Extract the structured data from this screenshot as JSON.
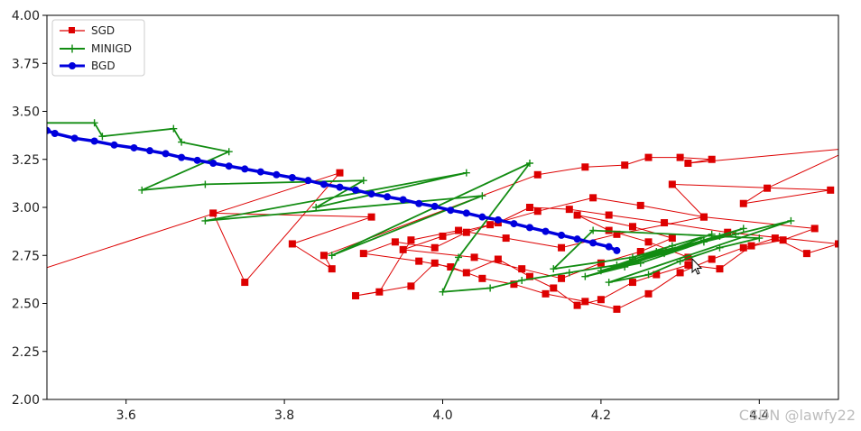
{
  "chart_data": {
    "type": "line",
    "title": "",
    "xlabel": "",
    "ylabel": "",
    "xlim": [
      3.5,
      4.5
    ],
    "ylim": [
      2.0,
      4.0
    ],
    "xticks": [
      3.6,
      3.8,
      4.0,
      4.2,
      4.4
    ],
    "yticks": [
      2.0,
      2.25,
      2.5,
      2.75,
      3.0,
      3.25,
      3.5,
      3.75,
      4.0
    ],
    "xtick_labels": [
      "3.6",
      "3.8",
      "4.0",
      "4.2",
      "4.4"
    ],
    "ytick_labels": [
      "2.00",
      "2.25",
      "2.50",
      "2.75",
      "3.00",
      "3.25",
      "3.50",
      "3.75",
      "4.00"
    ],
    "grid": false,
    "legend_position": "top-left",
    "series": [
      {
        "name": "SGD",
        "color": "#dd0000",
        "marker": "square",
        "x": [
          3.45,
          3.87,
          3.75,
          3.71,
          3.91,
          3.81,
          3.86,
          3.85,
          4.12,
          4.18,
          4.23,
          4.26,
          4.3,
          4.34,
          4.31,
          4.52,
          4.41,
          4.38,
          4.49,
          4.29,
          4.33,
          4.22,
          4.15,
          4.08,
          4.02,
          3.96,
          3.92,
          3.89,
          3.96,
          3.99,
          4.03,
          4.07,
          4.11,
          4.14,
          4.17,
          4.2,
          4.24,
          4.27,
          4.31,
          4.35,
          4.39,
          4.42,
          4.46,
          4.5,
          4.36,
          4.28,
          4.21,
          4.16,
          4.11,
          4.07,
          4.03,
          3.99,
          3.94,
          3.9,
          3.97,
          4.01,
          4.05,
          4.09,
          4.13,
          4.18,
          4.22,
          4.26,
          4.3,
          4.34,
          4.38,
          4.43,
          4.47,
          4.33,
          4.25,
          4.19,
          4.12,
          4.06,
          4.0,
          3.95,
          4.04,
          4.1,
          4.15,
          4.2,
          4.25,
          4.29,
          4.24,
          4.17,
          4.21,
          4.26,
          4.31
        ],
        "y": [
          2.62,
          3.18,
          2.61,
          2.97,
          2.95,
          2.81,
          2.68,
          2.75,
          3.17,
          3.21,
          3.22,
          3.26,
          3.26,
          3.25,
          3.23,
          3.31,
          3.1,
          3.02,
          3.09,
          3.12,
          2.95,
          2.86,
          2.79,
          2.84,
          2.88,
          2.83,
          2.56,
          2.54,
          2.59,
          2.71,
          2.66,
          2.73,
          2.64,
          2.58,
          2.49,
          2.52,
          2.61,
          2.65,
          2.7,
          2.68,
          2.8,
          2.84,
          2.76,
          2.81,
          2.87,
          2.92,
          2.96,
          2.99,
          3.0,
          2.92,
          2.87,
          2.79,
          2.82,
          2.76,
          2.72,
          2.69,
          2.63,
          2.6,
          2.55,
          2.51,
          2.47,
          2.55,
          2.66,
          2.73,
          2.79,
          2.83,
          2.89,
          2.95,
          3.01,
          3.05,
          2.98,
          2.91,
          2.85,
          2.78,
          2.74,
          2.68,
          2.63,
          2.71,
          2.77,
          2.84,
          2.9,
          2.96,
          2.88,
          2.82,
          2.74
        ]
      },
      {
        "name": "MINIGD",
        "color": "#128c12",
        "marker": "plus",
        "x": [
          3.44,
          3.56,
          3.57,
          3.66,
          3.67,
          3.73,
          3.62,
          3.7,
          3.9,
          3.84,
          4.03,
          3.7,
          4.05,
          3.86,
          4.11,
          4.02,
          4.0,
          4.06,
          4.1,
          4.16,
          4.22,
          4.27,
          4.33,
          4.37,
          4.44,
          4.21,
          4.26,
          4.3,
          4.35,
          4.4,
          4.19,
          4.14,
          4.24,
          4.29,
          4.34,
          4.23,
          4.18,
          4.28,
          4.33,
          4.38,
          4.25,
          4.2,
          4.29,
          4.35,
          4.24
        ],
        "y": [
          3.44,
          3.44,
          3.37,
          3.41,
          3.34,
          3.29,
          3.09,
          3.12,
          3.14,
          3.0,
          3.18,
          2.93,
          3.06,
          2.75,
          3.23,
          2.74,
          2.56,
          2.58,
          2.62,
          2.66,
          2.7,
          2.77,
          2.82,
          2.86,
          2.93,
          2.61,
          2.65,
          2.72,
          2.79,
          2.84,
          2.88,
          2.68,
          2.74,
          2.8,
          2.86,
          2.69,
          2.64,
          2.76,
          2.83,
          2.89,
          2.71,
          2.67,
          2.78,
          2.85,
          2.73
        ]
      },
      {
        "name": "BGD",
        "color": "#0000dd",
        "marker": "circle",
        "x": [
          3.5,
          3.51,
          3.535,
          3.56,
          3.585,
          3.61,
          3.63,
          3.65,
          3.67,
          3.69,
          3.71,
          3.73,
          3.75,
          3.77,
          3.79,
          3.81,
          3.83,
          3.85,
          3.87,
          3.89,
          3.91,
          3.93,
          3.95,
          3.97,
          3.99,
          4.01,
          4.03,
          4.05,
          4.07,
          4.09,
          4.11,
          4.13,
          4.15,
          4.17,
          4.19,
          4.21,
          4.22
        ],
        "y": [
          3.4,
          3.385,
          3.36,
          3.345,
          3.325,
          3.31,
          3.295,
          3.28,
          3.26,
          3.245,
          3.23,
          3.215,
          3.2,
          3.185,
          3.17,
          3.155,
          3.14,
          3.12,
          3.105,
          3.09,
          3.07,
          3.055,
          3.04,
          3.02,
          3.005,
          2.985,
          2.97,
          2.95,
          2.935,
          2.915,
          2.895,
          2.875,
          2.855,
          2.835,
          2.815,
          2.795,
          2.775
        ]
      }
    ]
  },
  "watermark": "CSDN @lawfy22",
  "icons": {
    "cursor": "mouse-pointer-icon"
  }
}
